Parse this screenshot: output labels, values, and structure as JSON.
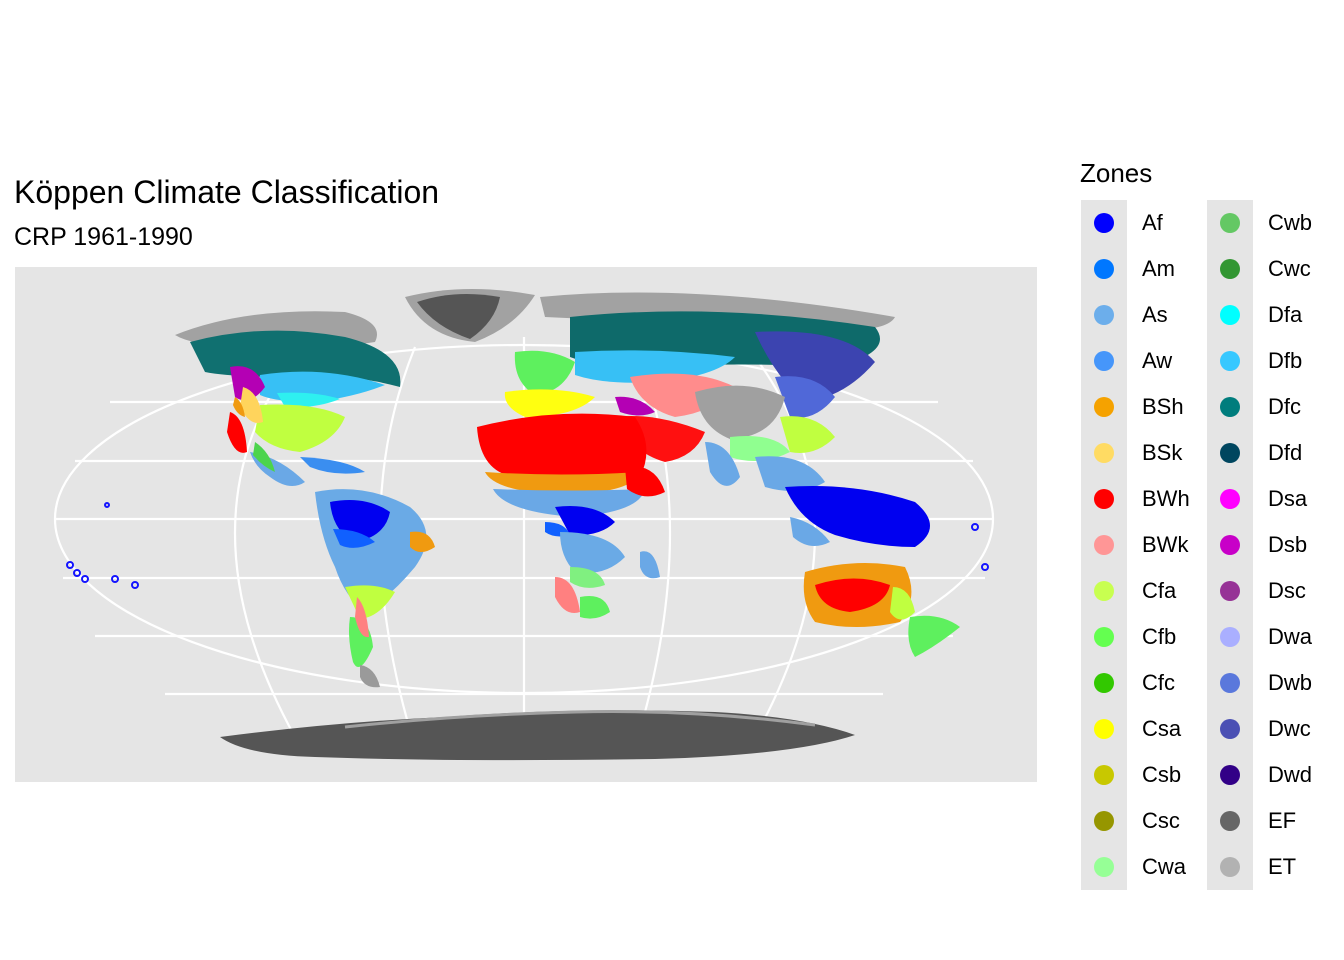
{
  "title": "Köppen Climate Classification",
  "subtitle": "CRP 1961-1990",
  "map": {
    "projection": "robinson",
    "background_color": "#e5e5e5",
    "graticule_color": "#ffffff",
    "ocean_fill": false
  },
  "legend": {
    "title": "Zones",
    "placement": "right",
    "columns": 2,
    "items": [
      {
        "label": "Af",
        "color": "#0000fe"
      },
      {
        "label": "Am",
        "color": "#0077ff"
      },
      {
        "label": "As",
        "color": "#6caeeb"
      },
      {
        "label": "Aw",
        "color": "#4696fa"
      },
      {
        "label": "BSh",
        "color": "#f5a200"
      },
      {
        "label": "BSk",
        "color": "#ffdb63"
      },
      {
        "label": "BWh",
        "color": "#ff0000"
      },
      {
        "label": "BWk",
        "color": "#ff9696"
      },
      {
        "label": "Cfa",
        "color": "#c8ff50"
      },
      {
        "label": "Cfb",
        "color": "#64ff50"
      },
      {
        "label": "Cfc",
        "color": "#32c800"
      },
      {
        "label": "Csa",
        "color": "#ffff00"
      },
      {
        "label": "Csb",
        "color": "#c8c800"
      },
      {
        "label": "Csc",
        "color": "#969600"
      },
      {
        "label": "Cwa",
        "color": "#96ff96"
      },
      {
        "label": "Cwb",
        "color": "#64c864"
      },
      {
        "label": "Cwc",
        "color": "#329632"
      },
      {
        "label": "Dfa",
        "color": "#00ffff"
      },
      {
        "label": "Dfb",
        "color": "#37c8ff"
      },
      {
        "label": "Dfc",
        "color": "#007d7d"
      },
      {
        "label": "Dfd",
        "color": "#00465f"
      },
      {
        "label": "Dsa",
        "color": "#ff00ff"
      },
      {
        "label": "Dsb",
        "color": "#c800c8"
      },
      {
        "label": "Dsc",
        "color": "#963296"
      },
      {
        "label": "Dwa",
        "color": "#aaafff"
      },
      {
        "label": "Dwb",
        "color": "#5a78dc"
      },
      {
        "label": "Dwc",
        "color": "#4b50b4"
      },
      {
        "label": "Dwd",
        "color": "#320087"
      },
      {
        "label": "EF",
        "color": "#666666"
      },
      {
        "label": "ET",
        "color": "#b2b2b2"
      }
    ]
  }
}
